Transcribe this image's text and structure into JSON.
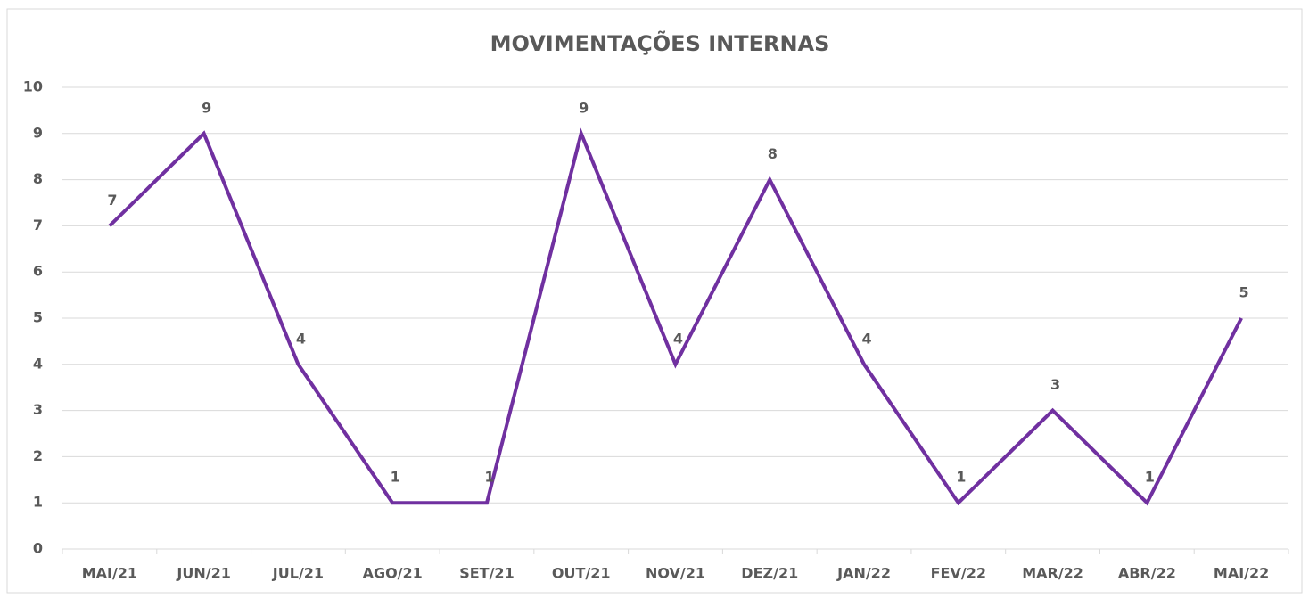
{
  "chart_data": {
    "type": "line",
    "title": "MOVIMENTAÇÕES INTERNAS",
    "categories": [
      "MAI/21",
      "JUN/21",
      "JUL/21",
      "AGO/21",
      "SET/21",
      "OUT/21",
      "NOV/21",
      "DEZ/21",
      "JAN/22",
      "FEV/22",
      "MAR/22",
      "ABR/22",
      "MAI/22"
    ],
    "values": [
      7,
      9,
      4,
      1,
      1,
      9,
      4,
      8,
      4,
      1,
      3,
      1,
      5
    ],
    "color": "#7030a0",
    "ylim": [
      0,
      10
    ],
    "yticks": [
      0,
      1,
      2,
      3,
      4,
      5,
      6,
      7,
      8,
      9,
      10
    ],
    "grid": true
  }
}
